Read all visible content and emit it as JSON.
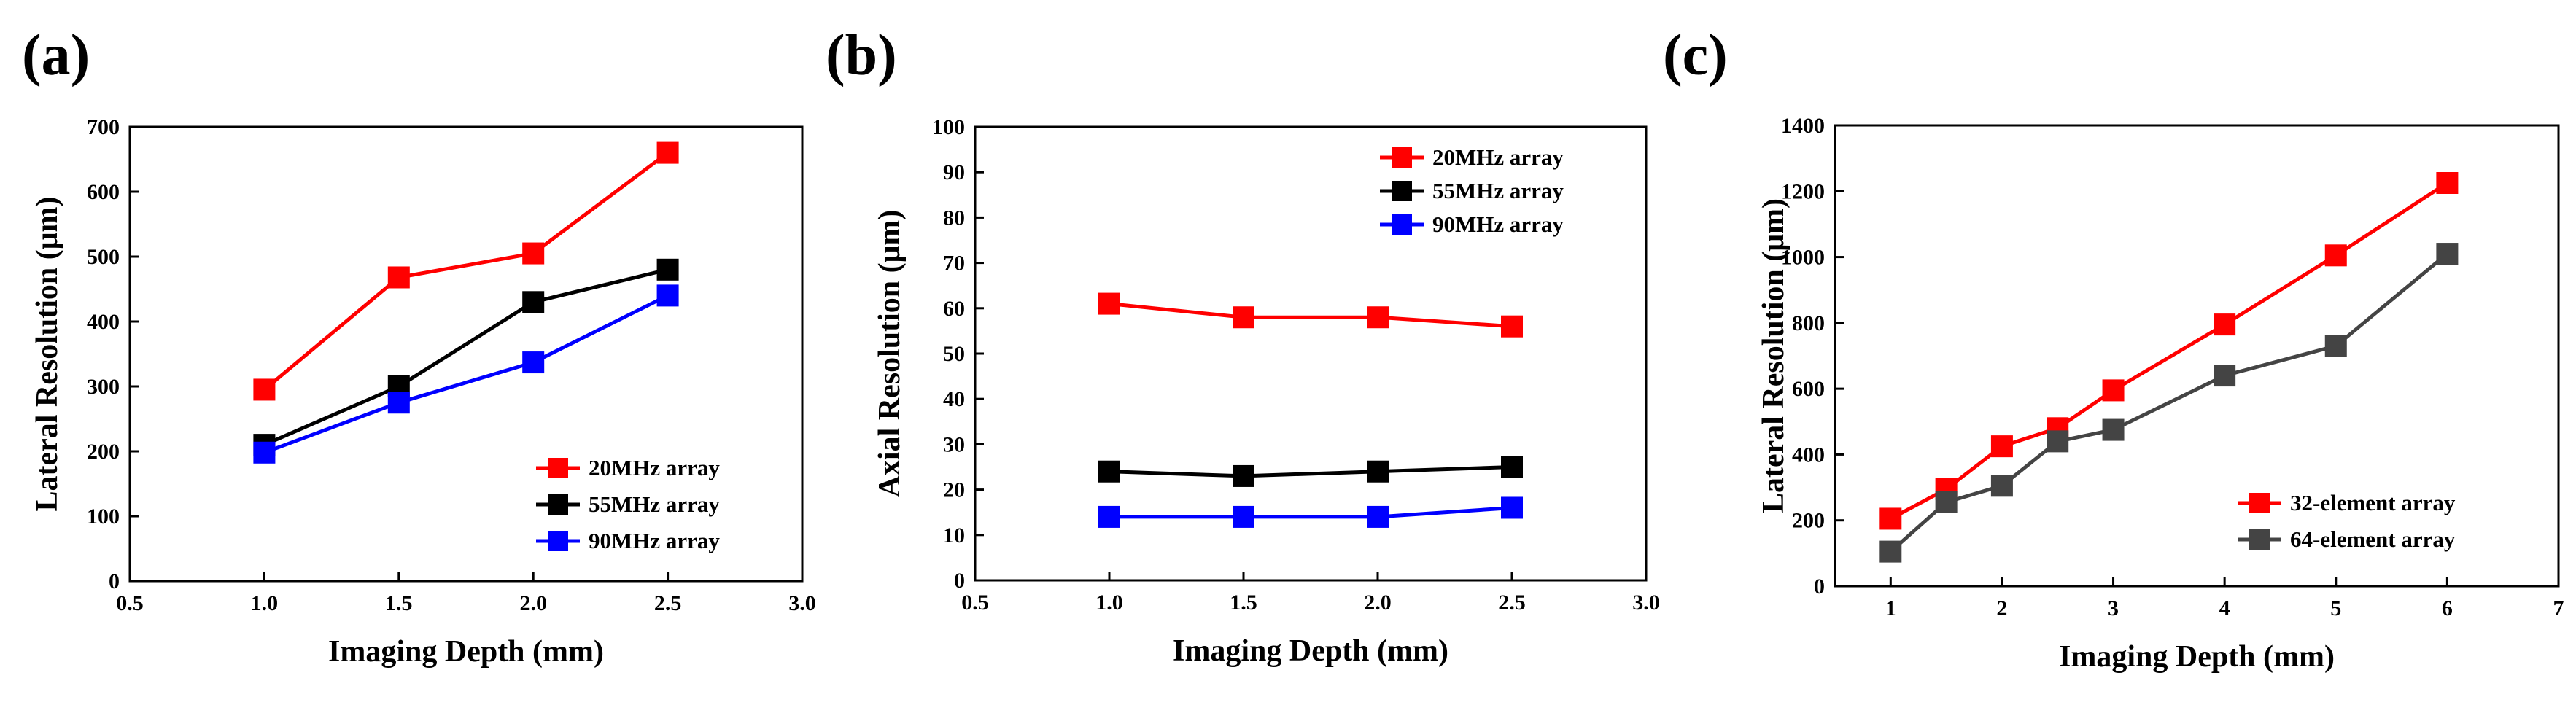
{
  "chart_data": [
    {
      "type": "line",
      "panel_label": "(a)",
      "xlabel": "Imaging Depth (mm)",
      "ylabel": "Lateral Resolution (μm)",
      "xlim": [
        0.5,
        3.0
      ],
      "ylim": [
        0,
        700
      ],
      "xticks": [
        0.5,
        1.0,
        1.5,
        2.0,
        2.5,
        3.0
      ],
      "xtick_labels": [
        "0.5",
        "1.0",
        "1.5",
        "2.0",
        "2.5",
        "3.0"
      ],
      "yticks": [
        0,
        100,
        200,
        300,
        400,
        500,
        600,
        700
      ],
      "ytick_labels": [
        "0",
        "100",
        "200",
        "300",
        "400",
        "500",
        "600",
        "700"
      ],
      "legend_position": "bottom-right",
      "series": [
        {
          "name": "20MHz array",
          "color": "#ff0000",
          "x": [
            1.0,
            1.5,
            2.0,
            2.5
          ],
          "y": [
            295,
            468,
            505,
            660
          ]
        },
        {
          "name": "55MHz array",
          "color": "#000000",
          "x": [
            1.0,
            1.5,
            2.0,
            2.5
          ],
          "y": [
            210,
            300,
            430,
            480
          ]
        },
        {
          "name": "90MHz array",
          "color": "#0000ff",
          "x": [
            1.0,
            1.5,
            2.0,
            2.5
          ],
          "y": [
            198,
            275,
            337,
            440
          ]
        }
      ]
    },
    {
      "type": "line",
      "panel_label": "(b)",
      "xlabel": "Imaging Depth (mm)",
      "ylabel": "Axial Resolution (μm)",
      "xlim": [
        0.5,
        3.0
      ],
      "ylim": [
        0,
        100
      ],
      "xticks": [
        0.5,
        1.0,
        1.5,
        2.0,
        2.5,
        3.0
      ],
      "xtick_labels": [
        "0.5",
        "1.0",
        "1.5",
        "2.0",
        "2.5",
        "3.0"
      ],
      "yticks": [
        0,
        10,
        20,
        30,
        40,
        50,
        60,
        70,
        80,
        90,
        100
      ],
      "ytick_labels": [
        "0",
        "10",
        "20",
        "30",
        "40",
        "50",
        "60",
        "70",
        "80",
        "90",
        "100"
      ],
      "legend_position": "top-right",
      "series": [
        {
          "name": "20MHz array",
          "color": "#ff0000",
          "x": [
            1.0,
            1.5,
            2.0,
            2.5
          ],
          "y": [
            61,
            58,
            58,
            56
          ]
        },
        {
          "name": "55MHz array",
          "color": "#000000",
          "x": [
            1.0,
            1.5,
            2.0,
            2.5
          ],
          "y": [
            24,
            23,
            24,
            25
          ]
        },
        {
          "name": "90MHz array",
          "color": "#0000ff",
          "x": [
            1.0,
            1.5,
            2.0,
            2.5
          ],
          "y": [
            14,
            14,
            14,
            16
          ]
        }
      ]
    },
    {
      "type": "line",
      "panel_label": "(c)",
      "xlabel": "Imaging Depth (mm)",
      "ylabel": "Lateral Resolution (μm)",
      "xlim": [
        0.5,
        7
      ],
      "ylim": [
        0,
        1400
      ],
      "xticks": [
        1,
        2,
        3,
        4,
        5,
        6,
        7
      ],
      "xtick_labels": [
        "1",
        "2",
        "3",
        "4",
        "5",
        "6",
        "7"
      ],
      "yticks": [
        0,
        200,
        400,
        600,
        800,
        1000,
        1200,
        1400
      ],
      "ytick_labels": [
        "0",
        "200",
        "400",
        "600",
        "800",
        "1000",
        "1200",
        "1400"
      ],
      "legend_position": "bottom-right",
      "series": [
        {
          "name": "32-element array",
          "color": "#ff0000",
          "x": [
            1,
            1.5,
            2,
            2.5,
            3,
            4,
            5,
            6
          ],
          "y": [
            205,
            295,
            425,
            480,
            595,
            795,
            1005,
            1225
          ]
        },
        {
          "name": "64-element array",
          "color": "#444444",
          "x": [
            1,
            1.5,
            2,
            2.5,
            3,
            4,
            5,
            6
          ],
          "y": [
            105,
            255,
            305,
            440,
            475,
            640,
            730,
            1010
          ]
        }
      ]
    }
  ]
}
